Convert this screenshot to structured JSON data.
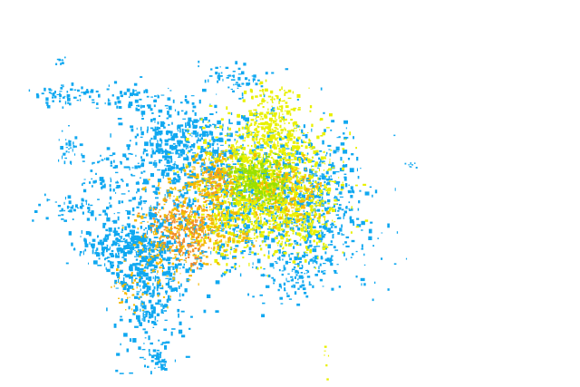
{
  "map": {
    "background": "#ffffff",
    "palette": {
      "low": "#10a8f0",
      "low_mid": "#e8f000",
      "mid": "#9ae000",
      "high": "#f5b800",
      "very_high": "#f08a30"
    }
  }
}
